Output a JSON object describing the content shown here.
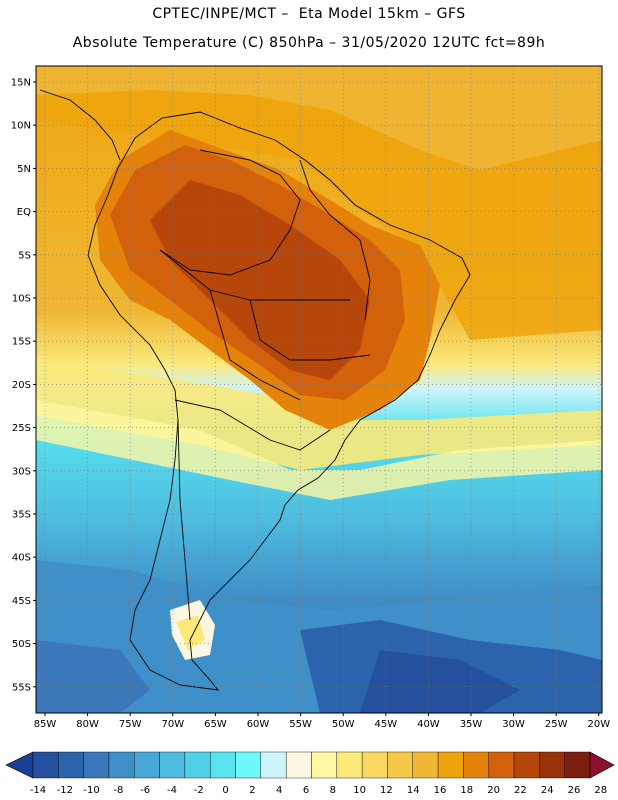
{
  "title": {
    "line1": "CPTEC/INPE/MCT –  Eta Model 15km – GFS",
    "line2": "Absolute Temperature (C) 850hPa – 31/05/2020 12UTC fct=89h"
  },
  "map": {
    "lat_labels": [
      "15N",
      "10N",
      "5N",
      "EQ",
      "5S",
      "10S",
      "15S",
      "20S",
      "25S",
      "30S",
      "35S",
      "40S",
      "45S",
      "50S",
      "55S"
    ],
    "lon_labels": [
      "85W",
      "80W",
      "75W",
      "70W",
      "65W",
      "60W",
      "55W",
      "50W",
      "45W",
      "40W",
      "35W",
      "30W",
      "25W",
      "20W"
    ]
  },
  "colorbar": {
    "ticks": [
      "-14",
      "-12",
      "-10",
      "-8",
      "-6",
      "-4",
      "-2",
      "0",
      "2",
      "4",
      "6",
      "8",
      "10",
      "12",
      "14",
      "16",
      "18",
      "20",
      "22",
      "24",
      "26",
      "28"
    ],
    "colors": [
      "#1c3f93",
      "#24509e",
      "#2c63ad",
      "#3a78bb",
      "#3f8fc8",
      "#47a7d6",
      "#4dbcdf",
      "#4ed0e8",
      "#58e3ef",
      "#6ff8fb",
      "#cdf4fb",
      "#fbf7e2",
      "#fff7a1",
      "#fbe97a",
      "#f8d863",
      "#f4c94a",
      "#f0b734",
      "#eea50d",
      "#e5820a",
      "#d3600a",
      "#b64609",
      "#993209",
      "#7a1f0e",
      "#8c0f2f"
    ]
  }
}
